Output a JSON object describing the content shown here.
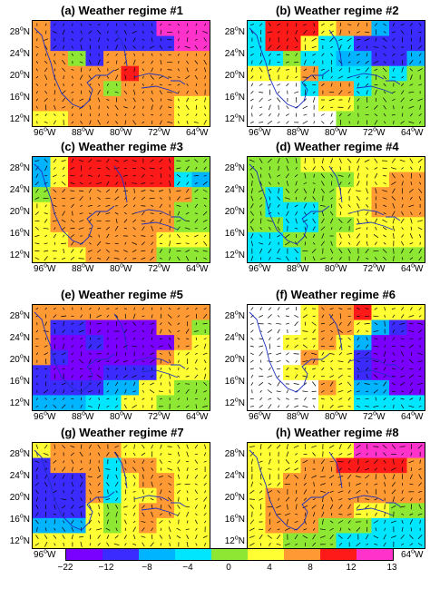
{
  "panels": [
    {
      "tag": "(a)",
      "title": "Weather regime #1"
    },
    {
      "tag": "(b)",
      "title": "Weather regime #2"
    },
    {
      "tag": "(c)",
      "title": "Weather regime #3"
    },
    {
      "tag": "(d)",
      "title": "Weather regime #4"
    },
    {
      "tag": "(e)",
      "title": "Weather regime #5"
    },
    {
      "tag": "(f)",
      "title": "Weather regime #6"
    },
    {
      "tag": "(g)",
      "title": "Weather regime #7"
    },
    {
      "tag": "(h)",
      "title": "Weather regime #8"
    }
  ],
  "lat_labels": [
    "28",
    "24",
    "20",
    "16",
    "12"
  ],
  "lon_labels": [
    "96",
    "88",
    "80",
    "72",
    "64"
  ],
  "lat_suffix": "N",
  "lon_suffix": "W",
  "colorbar": {
    "ticks": [
      "−22",
      "−12",
      "−8",
      "−4",
      "0",
      "4",
      "8",
      "12",
      "13"
    ],
    "colors": [
      "#7a00ff",
      "#3b2bff",
      "#00b4ff",
      "#00e6ff",
      "#8ee833",
      "#ffff33",
      "#ff9933",
      "#ff1a1a",
      "#ff33cc"
    ]
  },
  "regimes": [
    [
      "7222222999",
      "7222222299",
      "7752777777",
      "7777787777",
      "7777577777",
      "7777777766",
      "6677777766"
    ],
    [
      "4888677322",
      "4886442222",
      "4454433223",
      "6667444545",
      "0004774555",
      "0000665555",
      "0000055555"
    ],
    [
      "3688888855",
      "3688888843",
      "5777777775",
      "6777777755",
      "6777777755",
      "6677777666",
      "6667777555"
    ],
    [
      "5556666666",
      "5555556677",
      "5455566777",
      "5444566777",
      "5544556666",
      "4455566666",
      "4445555555"
    ],
    [
      "7777777777",
      "7221111775",
      "7112111176",
      "7211111766",
      "2111222666",
      "2222336655",
      "3334466555"
    ],
    [
      "0006778666",
      "0006776321",
      "0066763111",
      "0007662111",
      "0066662111",
      "0000763311",
      "0000664444"
    ],
    [
      "6777766666",
      "2777477666",
      "2227467766",
      "2227466766",
      "2226567766",
      "3336567666",
      "6666666666"
    ],
    [
      "6666669999",
      "6667788887",
      "6677777777",
      "6777777777",
      "6777776655",
      "6777555444",
      "6655544444"
    ]
  ],
  "legend_series": []
}
